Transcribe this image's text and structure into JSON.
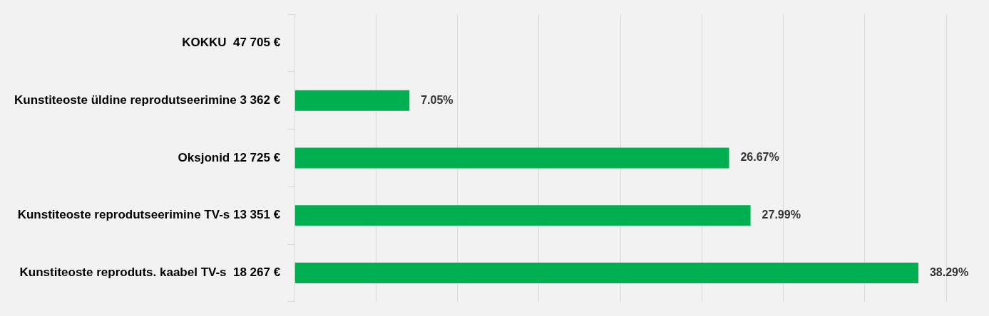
{
  "chart_data": {
    "type": "bar",
    "orientation": "horizontal",
    "categories": [
      "KOKKU  47 705 €",
      "Kunstiteoste üldine reprodutseerimine 3 362 €",
      "Oksjonid 12 725 €",
      "Kunstiteoste reprodutseerimine TV-s 13 351 €",
      "Kunstiteoste reproduts. kaabel TV-s  18 267 €"
    ],
    "values": [
      null,
      7.05,
      26.67,
      27.99,
      38.29
    ],
    "value_labels": [
      null,
      "7.05%",
      "26.67%",
      "27.99%",
      "38.29%"
    ],
    "color": "#00b050",
    "xlim": [
      0,
      40
    ],
    "xticks": [
      {
        "value": 0,
        "label": null
      },
      {
        "value": 5,
        "label": null
      },
      {
        "value": 10,
        "label": null
      },
      {
        "value": 15,
        "label": null
      },
      {
        "value": 20,
        "label": null
      },
      {
        "value": 25,
        "label": null
      },
      {
        "value": 30,
        "label": null
      },
      {
        "value": 35,
        "label": null
      },
      {
        "value": 40,
        "label": null
      }
    ],
    "grid": "x",
    "tick_labels": "y",
    "legend": false
  }
}
